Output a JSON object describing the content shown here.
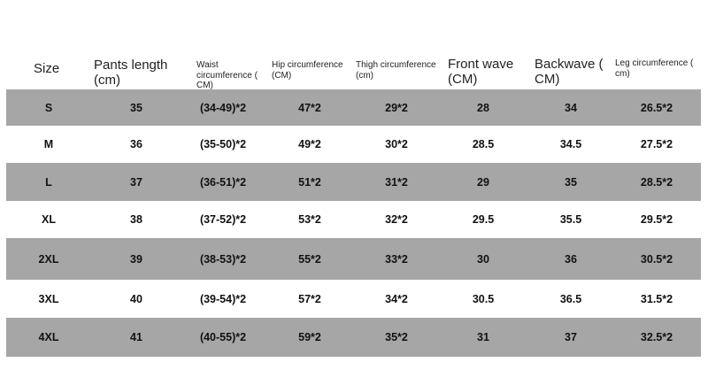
{
  "headers": [
    "Size",
    "Pants length (cm)",
    "Waist circumference ( CM)",
    "Hip circumference (CM)",
    "Thigh circumference (cm)",
    "Front wave (CM)",
    "Backwave ( CM)",
    "Leg circumference ( cm)"
  ],
  "rows": [
    [
      "S",
      "35",
      "(34-49)*2",
      "47*2",
      "29*2",
      "28",
      "34",
      "26.5*2"
    ],
    [
      "M",
      "36",
      "(35-50)*2",
      "49*2",
      "30*2",
      "28.5",
      "34.5",
      "27.5*2"
    ],
    [
      "L",
      "37",
      "(36-51)*2",
      "51*2",
      "31*2",
      "29",
      "35",
      "28.5*2"
    ],
    [
      "XL",
      "38",
      "(37-52)*2",
      "53*2",
      "32*2",
      "29.5",
      "35.5",
      "29.5*2"
    ],
    [
      "2XL",
      "39",
      "(38-53)*2",
      "55*2",
      "33*2",
      "30",
      "36",
      "30.5*2"
    ],
    [
      "3XL",
      "40",
      "(39-54)*2",
      "57*2",
      "34*2",
      "30.5",
      "36.5",
      "31.5*2"
    ],
    [
      "4XL",
      "41",
      "(40-55)*2",
      "59*2",
      "35*2",
      "31",
      "37",
      "32.5*2"
    ]
  ],
  "colors": {
    "shaded_row": "#a6a6a6",
    "plain_row": "#ffffff"
  }
}
